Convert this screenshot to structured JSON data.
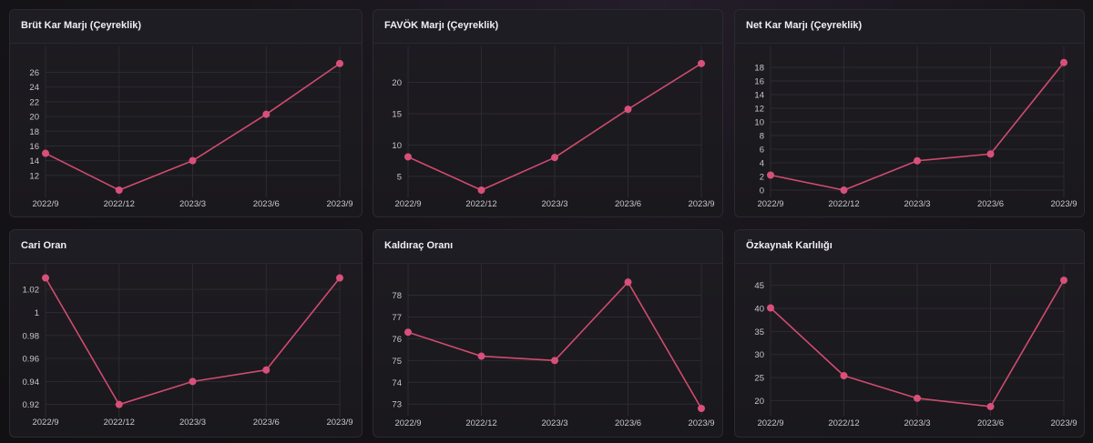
{
  "theme": {
    "line_color": "#d04b6e",
    "point_color": "#d8507a",
    "grid_color": "#2c2b31",
    "tick_color": "#c9c7cd"
  },
  "chart_data": [
    {
      "type": "line",
      "title": "Brüt Kar Marjı (Çeyreklik)",
      "categories": [
        "2022/9",
        "2022/12",
        "2023/3",
        "2023/6",
        "2023/9"
      ],
      "values": [
        15.0,
        10.0,
        14.0,
        20.3,
        27.2
      ],
      "yticks": [
        12,
        14,
        16,
        18,
        20,
        22,
        24,
        26
      ],
      "ylim": [
        10,
        27.8
      ]
    },
    {
      "type": "line",
      "title": "FAVÖK Marjı (Çeyreklik)",
      "categories": [
        "2022/9",
        "2022/12",
        "2023/3",
        "2023/6",
        "2023/9"
      ],
      "values": [
        8.1,
        2.8,
        8.0,
        15.7,
        23.0
      ],
      "yticks": [
        5,
        10,
        15,
        20
      ],
      "ylim": [
        2.8,
        23.7
      ]
    },
    {
      "type": "line",
      "title": "Net Kar Marjı (Çeyreklik)",
      "categories": [
        "2022/9",
        "2022/12",
        "2023/3",
        "2023/6",
        "2023/9"
      ],
      "values": [
        2.2,
        0.0,
        4.3,
        5.3,
        18.7
      ],
      "yticks": [
        0,
        2,
        4,
        6,
        8,
        10,
        12,
        14,
        16,
        18
      ],
      "ylim": [
        0,
        19.2
      ]
    },
    {
      "type": "line",
      "title": "Cari Oran",
      "categories": [
        "2022/9",
        "2022/12",
        "2023/3",
        "2023/6",
        "2023/9"
      ],
      "values": [
        1.03,
        0.92,
        0.94,
        0.95,
        1.03
      ],
      "yticks": [
        "0.92",
        "0.94",
        "0.96",
        "0.98",
        "1",
        "1.02"
      ],
      "ylim": [
        0.915,
        1.032
      ]
    },
    {
      "type": "line",
      "title": "Kaldıraç Oranı",
      "categories": [
        "2022/9",
        "2022/12",
        "2023/3",
        "2023/6",
        "2023/9"
      ],
      "values": [
        76.3,
        75.2,
        75.0,
        78.6,
        72.8
      ],
      "yticks": [
        73,
        74,
        75,
        76,
        77,
        78
      ],
      "ylim": [
        72.8,
        78.9
      ]
    },
    {
      "type": "line",
      "title": "Özkaynak Karlılığı",
      "categories": [
        "2022/9",
        "2022/12",
        "2023/3",
        "2023/6",
        "2023/9"
      ],
      "values": [
        40.1,
        25.4,
        20.5,
        18.7,
        46.1
      ],
      "yticks": [
        20,
        25,
        30,
        35,
        40,
        45
      ],
      "ylim": [
        18.3,
        47.1
      ]
    }
  ]
}
